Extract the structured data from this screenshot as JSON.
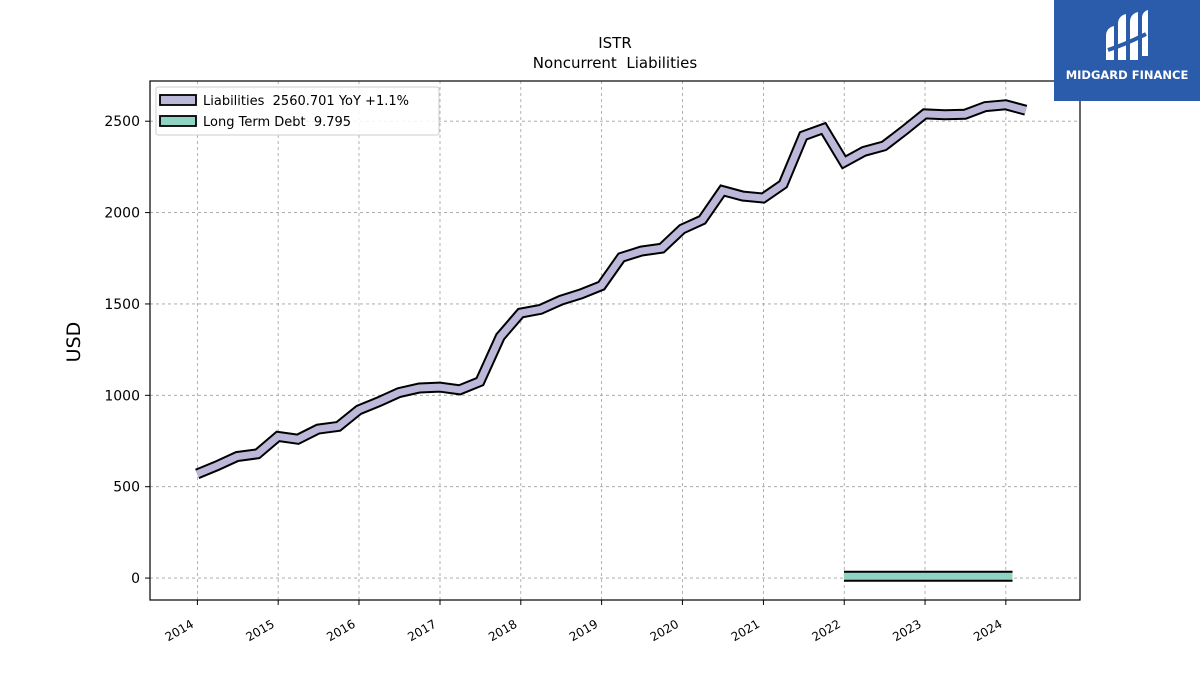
{
  "chart_data": {
    "type": "line",
    "title": "ISTR",
    "subtitle": "Noncurrent  Liabilities",
    "ylabel": "USD",
    "xlabel": "",
    "ylim": [
      -120,
      2720
    ],
    "yticks": [
      0,
      500,
      1000,
      1500,
      2000,
      2500
    ],
    "xticks": [
      "2014",
      "2015",
      "2016",
      "2017",
      "2018",
      "2019",
      "2020",
      "2021",
      "2022",
      "2023",
      "2024"
    ],
    "grid": true,
    "legend_position": "top-left",
    "series": [
      {
        "name": "Liabilities",
        "legend_label": "Liabilities  2560.701 YoY +1.1%",
        "color": "#bcb8da",
        "x": [
          "2013-12-31",
          "2014-03-31",
          "2014-06-30",
          "2014-09-30",
          "2014-12-31",
          "2015-03-31",
          "2015-06-30",
          "2015-09-30",
          "2015-12-31",
          "2016-03-31",
          "2016-06-30",
          "2016-09-30",
          "2016-12-31",
          "2017-03-31",
          "2017-06-30",
          "2017-09-30",
          "2017-12-31",
          "2018-03-31",
          "2018-06-30",
          "2018-09-30",
          "2018-12-31",
          "2019-03-31",
          "2019-06-30",
          "2019-09-30",
          "2019-12-31",
          "2020-03-31",
          "2020-06-30",
          "2020-09-30",
          "2020-12-31",
          "2021-03-31",
          "2021-06-30",
          "2021-09-30",
          "2021-12-31",
          "2022-03-31",
          "2022-06-30",
          "2022-09-30",
          "2022-12-31",
          "2023-03-31",
          "2023-06-30",
          "2023-09-30",
          "2023-12-31",
          "2024-03-31"
        ],
        "y": [
          570,
          615,
          665,
          680,
          775,
          760,
          815,
          830,
          920,
          965,
          1015,
          1040,
          1045,
          1030,
          1075,
          1320,
          1450,
          1470,
          1520,
          1555,
          1600,
          1755,
          1790,
          1805,
          1910,
          1960,
          2120,
          2090,
          2080,
          2155,
          2420,
          2460,
          2275,
          2335,
          2365,
          2450,
          2540,
          2535,
          2538,
          2580,
          2590,
          2560
        ]
      },
      {
        "name": "Long Term Debt",
        "legend_label": "Long Term Debt  9.795",
        "color": "#8fd3c4",
        "x": [
          "2021-12-31",
          "2024-01-31"
        ],
        "y": [
          9.795,
          9.795
        ]
      }
    ]
  },
  "brand": {
    "name": "MIDGARD FINANCE",
    "background": "#2a5cab"
  }
}
